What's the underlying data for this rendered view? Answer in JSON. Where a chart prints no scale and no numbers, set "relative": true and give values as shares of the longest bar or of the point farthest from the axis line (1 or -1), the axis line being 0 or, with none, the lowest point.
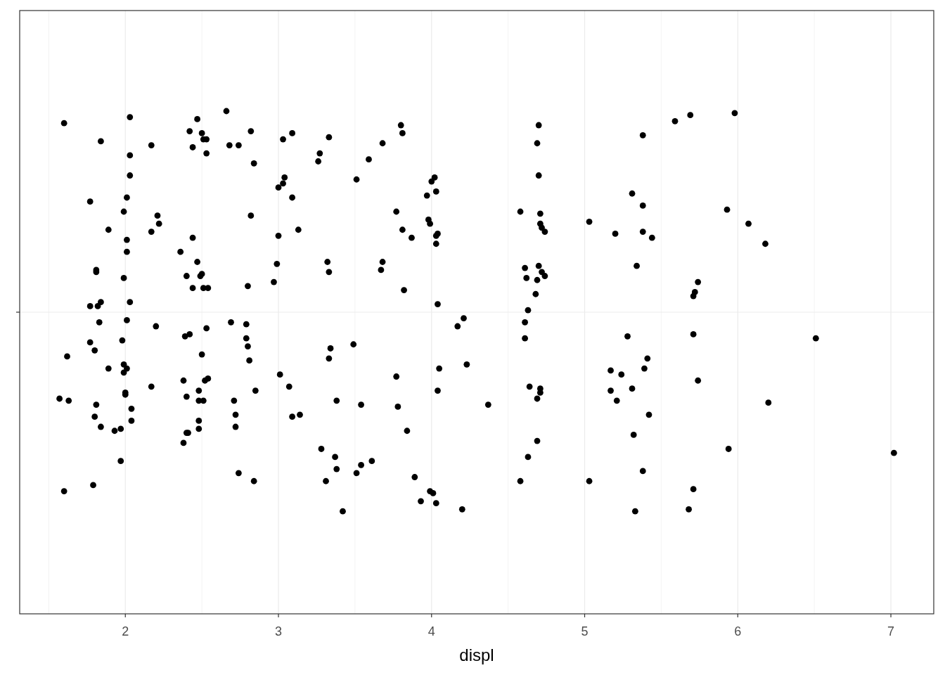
{
  "chart_data": {
    "type": "scatter",
    "xlabel": "displ",
    "relative": true,
    "color": "#000000",
    "marker": "circle",
    "grid": true,
    "tick_labels": "x",
    "xlim": [
      1.31,
      7.28
    ],
    "xticks": [
      2,
      3,
      4,
      5,
      6,
      7
    ],
    "x": [
      1.6,
      2.03,
      1.84,
      2.17,
      2.03,
      2.03,
      1.77,
      2.01,
      1.99,
      2.21,
      2.22,
      2.17,
      1.89,
      2.01,
      2.01,
      1.81,
      1.81,
      1.99,
      1.77,
      1.82,
      1.84,
      2.03,
      2.44,
      2.36,
      2.47,
      2.4,
      2.49,
      2.5,
      2.44,
      2.51,
      2.54,
      2.8,
      2.82,
      2.66,
      2.82,
      2.68,
      2.74,
      2.84,
      2.47,
      2.42,
      2.5,
      2.51,
      2.53,
      2.44,
      2.53,
      3.03,
      3.09,
      3.33,
      3.27,
      3.26,
      3.04,
      3.03,
      3.0,
      3.09,
      3.13,
      3.0,
      2.99,
      2.97,
      3.32,
      3.33,
      3.8,
      3.81,
      3.68,
      3.59,
      3.51,
      4.02,
      4.0,
      3.97,
      4.03,
      3.77,
      3.98,
      3.99,
      3.81,
      3.87,
      4.04,
      4.03,
      4.03,
      3.68,
      3.67,
      3.82,
      4.04,
      4.7,
      4.69,
      4.7,
      4.58,
      4.71,
      4.71,
      4.72,
      4.74,
      5.03,
      5.2,
      4.61,
      4.7,
      4.72,
      4.74,
      4.62,
      4.69,
      4.68,
      4.63,
      5.38,
      5.59,
      5.69,
      5.98,
      5.31,
      5.38,
      5.93,
      6.07,
      5.38,
      5.44,
      6.18,
      5.34,
      5.74,
      5.72,
      5.71,
      1.83,
      2.01,
      2.2,
      1.77,
      1.8,
      1.62,
      1.98,
      1.99,
      2.01,
      1.99,
      1.89,
      2.17,
      2.0,
      2.0,
      1.57,
      1.63,
      1.81,
      2.04,
      1.8,
      2.04,
      1.84,
      1.93,
      1.97,
      1.97,
      1.6,
      1.79,
      2.69,
      2.79,
      2.53,
      2.39,
      2.42,
      2.79,
      2.8,
      2.5,
      2.81,
      3.01,
      3.07,
      2.85,
      2.38,
      2.54,
      2.52,
      2.48,
      2.4,
      2.48,
      2.51,
      2.71,
      2.72,
      2.72,
      2.48,
      2.48,
      2.4,
      2.41,
      2.38,
      3.09,
      3.14,
      2.74,
      2.84,
      3.34,
      3.33,
      3.28,
      3.31,
      3.37,
      4.21,
      4.17,
      3.49,
      4.61,
      4.61,
      4.05,
      4.23,
      3.77,
      4.04,
      3.38,
      3.54,
      3.78,
      4.37,
      3.84,
      4.64,
      4.71,
      4.71,
      4.69,
      4.69,
      4.63,
      4.58,
      3.38,
      3.54,
      3.61,
      3.51,
      3.89,
      3.99,
      4.01,
      3.93,
      4.03,
      4.2,
      3.42,
      5.03,
      5.17,
      5.17,
      5.21,
      5.28,
      5.71,
      6.51,
      5.41,
      5.39,
      5.24,
      5.31,
      5.74,
      6.2,
      5.42,
      5.32,
      5.94,
      7.02,
      5.38,
      5.71,
      5.33,
      5.68
    ],
    "values": [
      0.94,
      0.97,
      0.85,
      0.83,
      0.78,
      0.68,
      0.55,
      0.57,
      0.5,
      0.48,
      0.44,
      0.4,
      0.41,
      0.36,
      0.3,
      0.21,
      0.2,
      0.17,
      0.03,
      0.03,
      0.05,
      0.05,
      0.37,
      0.3,
      0.25,
      0.18,
      0.18,
      0.19,
      0.12,
      0.12,
      0.12,
      0.13,
      0.48,
      1.0,
      0.9,
      0.83,
      0.83,
      0.74,
      0.96,
      0.9,
      0.89,
      0.86,
      0.86,
      0.82,
      0.79,
      0.86,
      0.89,
      0.87,
      0.79,
      0.75,
      0.67,
      0.64,
      0.62,
      0.57,
      0.41,
      0.38,
      0.24,
      0.15,
      0.25,
      0.2,
      0.93,
      0.89,
      0.84,
      0.76,
      0.66,
      0.67,
      0.65,
      0.58,
      0.6,
      0.5,
      0.46,
      0.44,
      0.41,
      0.37,
      0.39,
      0.38,
      0.34,
      0.25,
      0.21,
      0.11,
      0.04,
      0.93,
      0.84,
      0.68,
      0.5,
      0.49,
      0.44,
      0.42,
      0.4,
      0.45,
      0.39,
      0.22,
      0.23,
      0.2,
      0.18,
      0.17,
      0.16,
      0.09,
      0.01,
      0.88,
      0.95,
      0.98,
      0.99,
      0.59,
      0.53,
      0.51,
      0.44,
      0.4,
      0.37,
      0.34,
      0.23,
      0.15,
      0.1,
      0.08,
      -0.05,
      -0.04,
      -0.07,
      -0.15,
      -0.19,
      -0.22,
      -0.14,
      -0.26,
      -0.28,
      -0.3,
      -0.28,
      -0.37,
      -0.41,
      -0.4,
      -0.43,
      -0.44,
      -0.46,
      -0.48,
      -0.52,
      -0.54,
      -0.57,
      -0.59,
      -0.58,
      -0.74,
      -0.89,
      -0.86,
      -0.05,
      -0.06,
      -0.08,
      -0.12,
      -0.11,
      -0.13,
      -0.17,
      -0.21,
      -0.24,
      -0.31,
      -0.37,
      -0.39,
      -0.34,
      -0.33,
      -0.34,
      -0.39,
      -0.42,
      -0.44,
      -0.44,
      -0.44,
      -0.51,
      -0.57,
      -0.54,
      -0.58,
      -0.6,
      -0.6,
      -0.65,
      -0.52,
      -0.51,
      -0.8,
      -0.84,
      -0.18,
      -0.23,
      -0.68,
      -0.84,
      -0.72,
      -0.03,
      -0.07,
      -0.16,
      -0.05,
      -0.13,
      -0.28,
      -0.26,
      -0.32,
      -0.39,
      -0.44,
      -0.46,
      -0.47,
      -0.46,
      -0.59,
      -0.37,
      -0.38,
      -0.4,
      -0.43,
      -0.64,
      -0.72,
      -0.84,
      -0.78,
      -0.76,
      -0.74,
      -0.8,
      -0.82,
      -0.89,
      -0.9,
      -0.94,
      -0.95,
      -0.98,
      -0.99,
      -0.84,
      -0.29,
      -0.39,
      -0.44,
      -0.12,
      -0.11,
      -0.13,
      -0.23,
      -0.28,
      -0.31,
      -0.38,
      -0.34,
      -0.45,
      -0.51,
      -0.61,
      -0.68,
      -0.7,
      -0.79,
      -0.88,
      -0.99,
      -0.98
    ]
  }
}
